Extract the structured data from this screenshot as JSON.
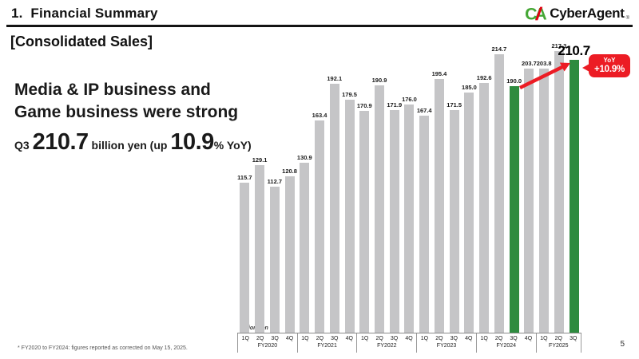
{
  "header": {
    "title": "1.  Financial Summary",
    "logo": {
      "mark": "CA",
      "name": "CyberAgent",
      "reg": "®"
    }
  },
  "section_title": "[Consolidated Sales]",
  "headline": {
    "line1": "Media & IP business and",
    "line2": "Game business were strong"
  },
  "kpi": {
    "prefix": "Q3 ",
    "value": "210.7",
    "mid": " billion yen (up ",
    "pct": "10.9",
    "suffix": "% YoY)"
  },
  "callout": {
    "line1": "YoY",
    "line2": "+10.9%"
  },
  "footnote": "* FY2020 to FY2024: figures reported as corrected on May 15, 2025.",
  "page_number": "5",
  "chart_data": {
    "type": "bar",
    "title": "Consolidated Sales",
    "ylabel": "Billion Yen",
    "unit_label": "Billion Yen",
    "ylim": [
      0,
      220
    ],
    "legend": "none",
    "grid": false,
    "groups": [
      {
        "fiscal_year": "FY2020",
        "quarters": [
          "1Q",
          "2Q",
          "3Q",
          "4Q"
        ],
        "values": [
          115.7,
          129.1,
          112.7,
          120.8
        ],
        "highlight": [
          false,
          false,
          false,
          false
        ]
      },
      {
        "fiscal_year": "FY2021",
        "quarters": [
          "1Q",
          "2Q",
          "3Q",
          "4Q"
        ],
        "values": [
          130.9,
          163.4,
          192.1,
          179.5
        ],
        "highlight": [
          false,
          false,
          false,
          false
        ]
      },
      {
        "fiscal_year": "FY2022",
        "quarters": [
          "1Q",
          "2Q",
          "3Q",
          "4Q"
        ],
        "values": [
          170.9,
          190.9,
          171.9,
          176.0
        ],
        "highlight": [
          false,
          false,
          false,
          false
        ]
      },
      {
        "fiscal_year": "FY2023",
        "quarters": [
          "1Q",
          "2Q",
          "3Q",
          "4Q"
        ],
        "values": [
          167.4,
          195.4,
          171.5,
          185.0
        ],
        "highlight": [
          false,
          false,
          false,
          false
        ]
      },
      {
        "fiscal_year": "FY2024",
        "quarters": [
          "1Q",
          "2Q",
          "3Q",
          "4Q"
        ],
        "values": [
          192.6,
          214.7,
          190.0,
          203.7
        ],
        "highlight": [
          false,
          false,
          true,
          false
        ]
      },
      {
        "fiscal_year": "FY2025",
        "quarters": [
          "1Q",
          "2Q",
          "3Q"
        ],
        "values": [
          203.8,
          217.3,
          210.7
        ],
        "highlight": [
          false,
          false,
          true
        ]
      }
    ],
    "annotation": {
      "from_bar": "FY2024-3Q",
      "to_bar": "FY2025-3Q",
      "label": "YoY +10.9%"
    },
    "colors": {
      "bar": "#c5c5c7",
      "highlight": "#2e8b3f",
      "accent_red": "#ec1c24",
      "logo_green": "#45a735",
      "logo_red": "#e50012"
    }
  }
}
